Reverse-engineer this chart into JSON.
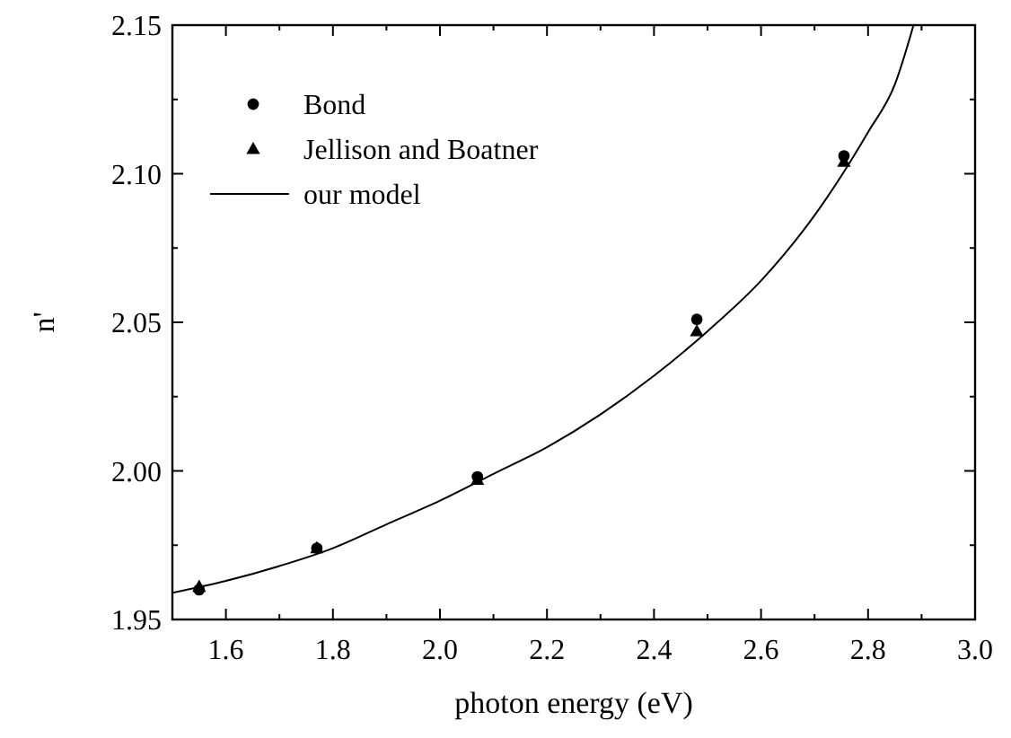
{
  "chart_data": {
    "type": "scatter",
    "xlabel": "photon energy (eV)",
    "ylabel": "n'",
    "xlim": [
      1.5,
      3.0
    ],
    "ylim": [
      1.95,
      2.15
    ],
    "xticks": [
      {
        "value": 1.5,
        "label": null
      },
      1.6,
      {
        "value": 1.7,
        "label": null
      },
      1.8,
      {
        "value": 1.9,
        "label": null
      },
      {
        "value": 2.0,
        "label": "2.0"
      },
      {
        "value": 2.1,
        "label": null
      },
      2.2,
      {
        "value": 2.3,
        "label": null
      },
      2.4,
      {
        "value": 2.5,
        "label": null
      },
      2.6,
      {
        "value": 2.7,
        "label": null
      },
      2.8,
      {
        "value": 2.9,
        "label": null
      },
      {
        "value": 3.0,
        "label": "3.0"
      }
    ],
    "yticks": [
      {
        "value": 1.95,
        "label": "1.95"
      },
      {
        "value": 1.975,
        "label": null
      },
      {
        "value": 2.0,
        "label": "2.00"
      },
      {
        "value": 2.025,
        "label": null
      },
      {
        "value": 2.05,
        "label": "2.05"
      },
      {
        "value": 2.075,
        "label": null
      },
      {
        "value": 2.1,
        "label": "2.10"
      },
      {
        "value": 2.125,
        "label": null
      },
      {
        "value": 2.15,
        "label": "2.15"
      }
    ],
    "legend": "top left",
    "grid": false,
    "series": [
      {
        "name": "Bond",
        "marker": "circle",
        "color": "#000000",
        "x": [
          1.55,
          1.77,
          2.07,
          2.48,
          2.755
        ],
        "values": [
          1.96,
          1.974,
          1.998,
          2.051,
          2.106
        ]
      },
      {
        "name": "Jellison and Boatner",
        "marker": "triangle",
        "color": "#000000",
        "x": [
          1.55,
          1.77,
          2.07,
          2.48,
          2.755
        ],
        "values": [
          1.961,
          1.974,
          1.997,
          2.047,
          2.104
        ]
      },
      {
        "name": "our model",
        "type": "line",
        "marker": "none",
        "line_style": "solid",
        "color": "#000000",
        "x": [
          1.5,
          1.6,
          1.7,
          1.8,
          1.9,
          2.0,
          2.1,
          2.2,
          2.3,
          2.4,
          2.5,
          2.6,
          2.7,
          2.8,
          2.85,
          2.885
        ],
        "values": [
          1.959,
          1.963,
          1.968,
          1.974,
          1.982,
          1.99,
          1.999,
          2.008,
          2.019,
          2.032,
          2.047,
          2.064,
          2.086,
          2.114,
          2.13,
          2.15
        ]
      }
    ]
  }
}
